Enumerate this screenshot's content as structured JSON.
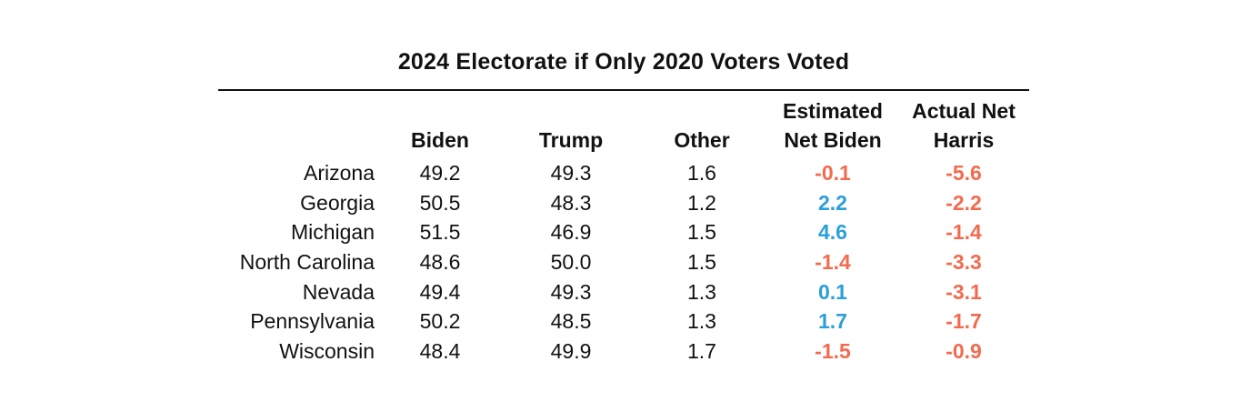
{
  "chart_data": {
    "type": "table",
    "title": "2024 Electorate if Only 2020 Voters Voted",
    "columns": [
      {
        "key": "biden",
        "label_lines": [
          "Biden"
        ]
      },
      {
        "key": "trump",
        "label_lines": [
          "Trump"
        ]
      },
      {
        "key": "other",
        "label_lines": [
          "Other"
        ]
      },
      {
        "key": "est_net_biden",
        "label_lines": [
          "Estimated",
          "Net Biden"
        ]
      },
      {
        "key": "actual_net_harris",
        "label_lines": [
          "Actual Net",
          "Harris"
        ]
      }
    ],
    "rows": [
      {
        "state": "Arizona",
        "biden": "49.2",
        "trump": "49.3",
        "other": "1.6",
        "est_net_biden": "-0.1",
        "actual_net_harris": "-5.6"
      },
      {
        "state": "Georgia",
        "biden": "50.5",
        "trump": "48.3",
        "other": "1.2",
        "est_net_biden": "2.2",
        "actual_net_harris": "-2.2"
      },
      {
        "state": "Michigan",
        "biden": "51.5",
        "trump": "46.9",
        "other": "1.5",
        "est_net_biden": "4.6",
        "actual_net_harris": "-1.4"
      },
      {
        "state": "North Carolina",
        "biden": "48.6",
        "trump": "50.0",
        "other": "1.5",
        "est_net_biden": "-1.4",
        "actual_net_harris": "-3.3"
      },
      {
        "state": "Nevada",
        "biden": "49.4",
        "trump": "49.3",
        "other": "1.3",
        "est_net_biden": "0.1",
        "actual_net_harris": "-3.1"
      },
      {
        "state": "Pennsylvania",
        "biden": "50.2",
        "trump": "48.5",
        "other": "1.3",
        "est_net_biden": "1.7",
        "actual_net_harris": "-1.7"
      },
      {
        "state": "Wisconsin",
        "biden": "48.4",
        "trump": "49.9",
        "other": "1.7",
        "est_net_biden": "-1.5",
        "actual_net_harris": "-0.9"
      }
    ]
  },
  "colors": {
    "text": "#111111",
    "rule": "#111111",
    "positive": "#2b9fd8",
    "negative": "#f26b4f"
  }
}
